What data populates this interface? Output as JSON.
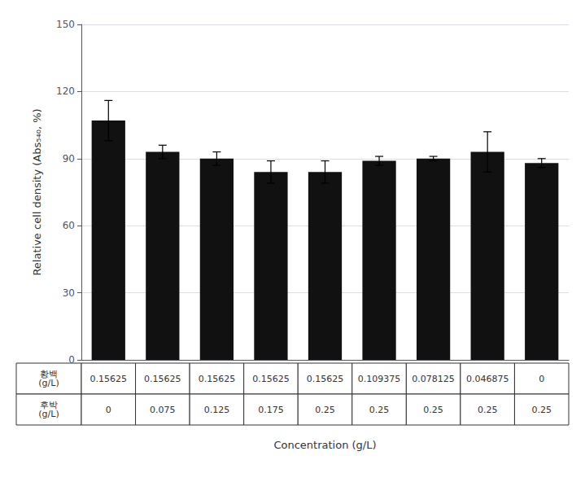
{
  "chart_data": {
    "type": "bar",
    "categories": [
      null,
      null,
      null,
      null,
      null,
      null,
      null,
      null,
      null
    ],
    "values": [
      107,
      93,
      90,
      84,
      84,
      89,
      90,
      93,
      88
    ],
    "errors": [
      9,
      3,
      3,
      5,
      5,
      2,
      1,
      9,
      2
    ],
    "color": "#111111",
    "xlabel": "Concentration (g/L)",
    "ylabel": "Relative cell density (Abs₅₄₀, %)",
    "ylim": [
      0,
      150
    ],
    "yticks": [
      0,
      30,
      60,
      90,
      120,
      150
    ],
    "grid": true,
    "tick_labels": "y",
    "table": [
      {
        "label": "황백\n(g/L)",
        "values": [
          "0.15625",
          "0.15625",
          "0.15625",
          "0.15625",
          "0.15625",
          "0.109375",
          "0.078125",
          "0.046875",
          "0"
        ]
      },
      {
        "label": "후박\n(g/L)",
        "values": [
          "0",
          "0.075",
          "0.125",
          "0.175",
          "0.25",
          "0.25",
          "0.25",
          "0.25",
          "0.25"
        ]
      }
    ]
  }
}
